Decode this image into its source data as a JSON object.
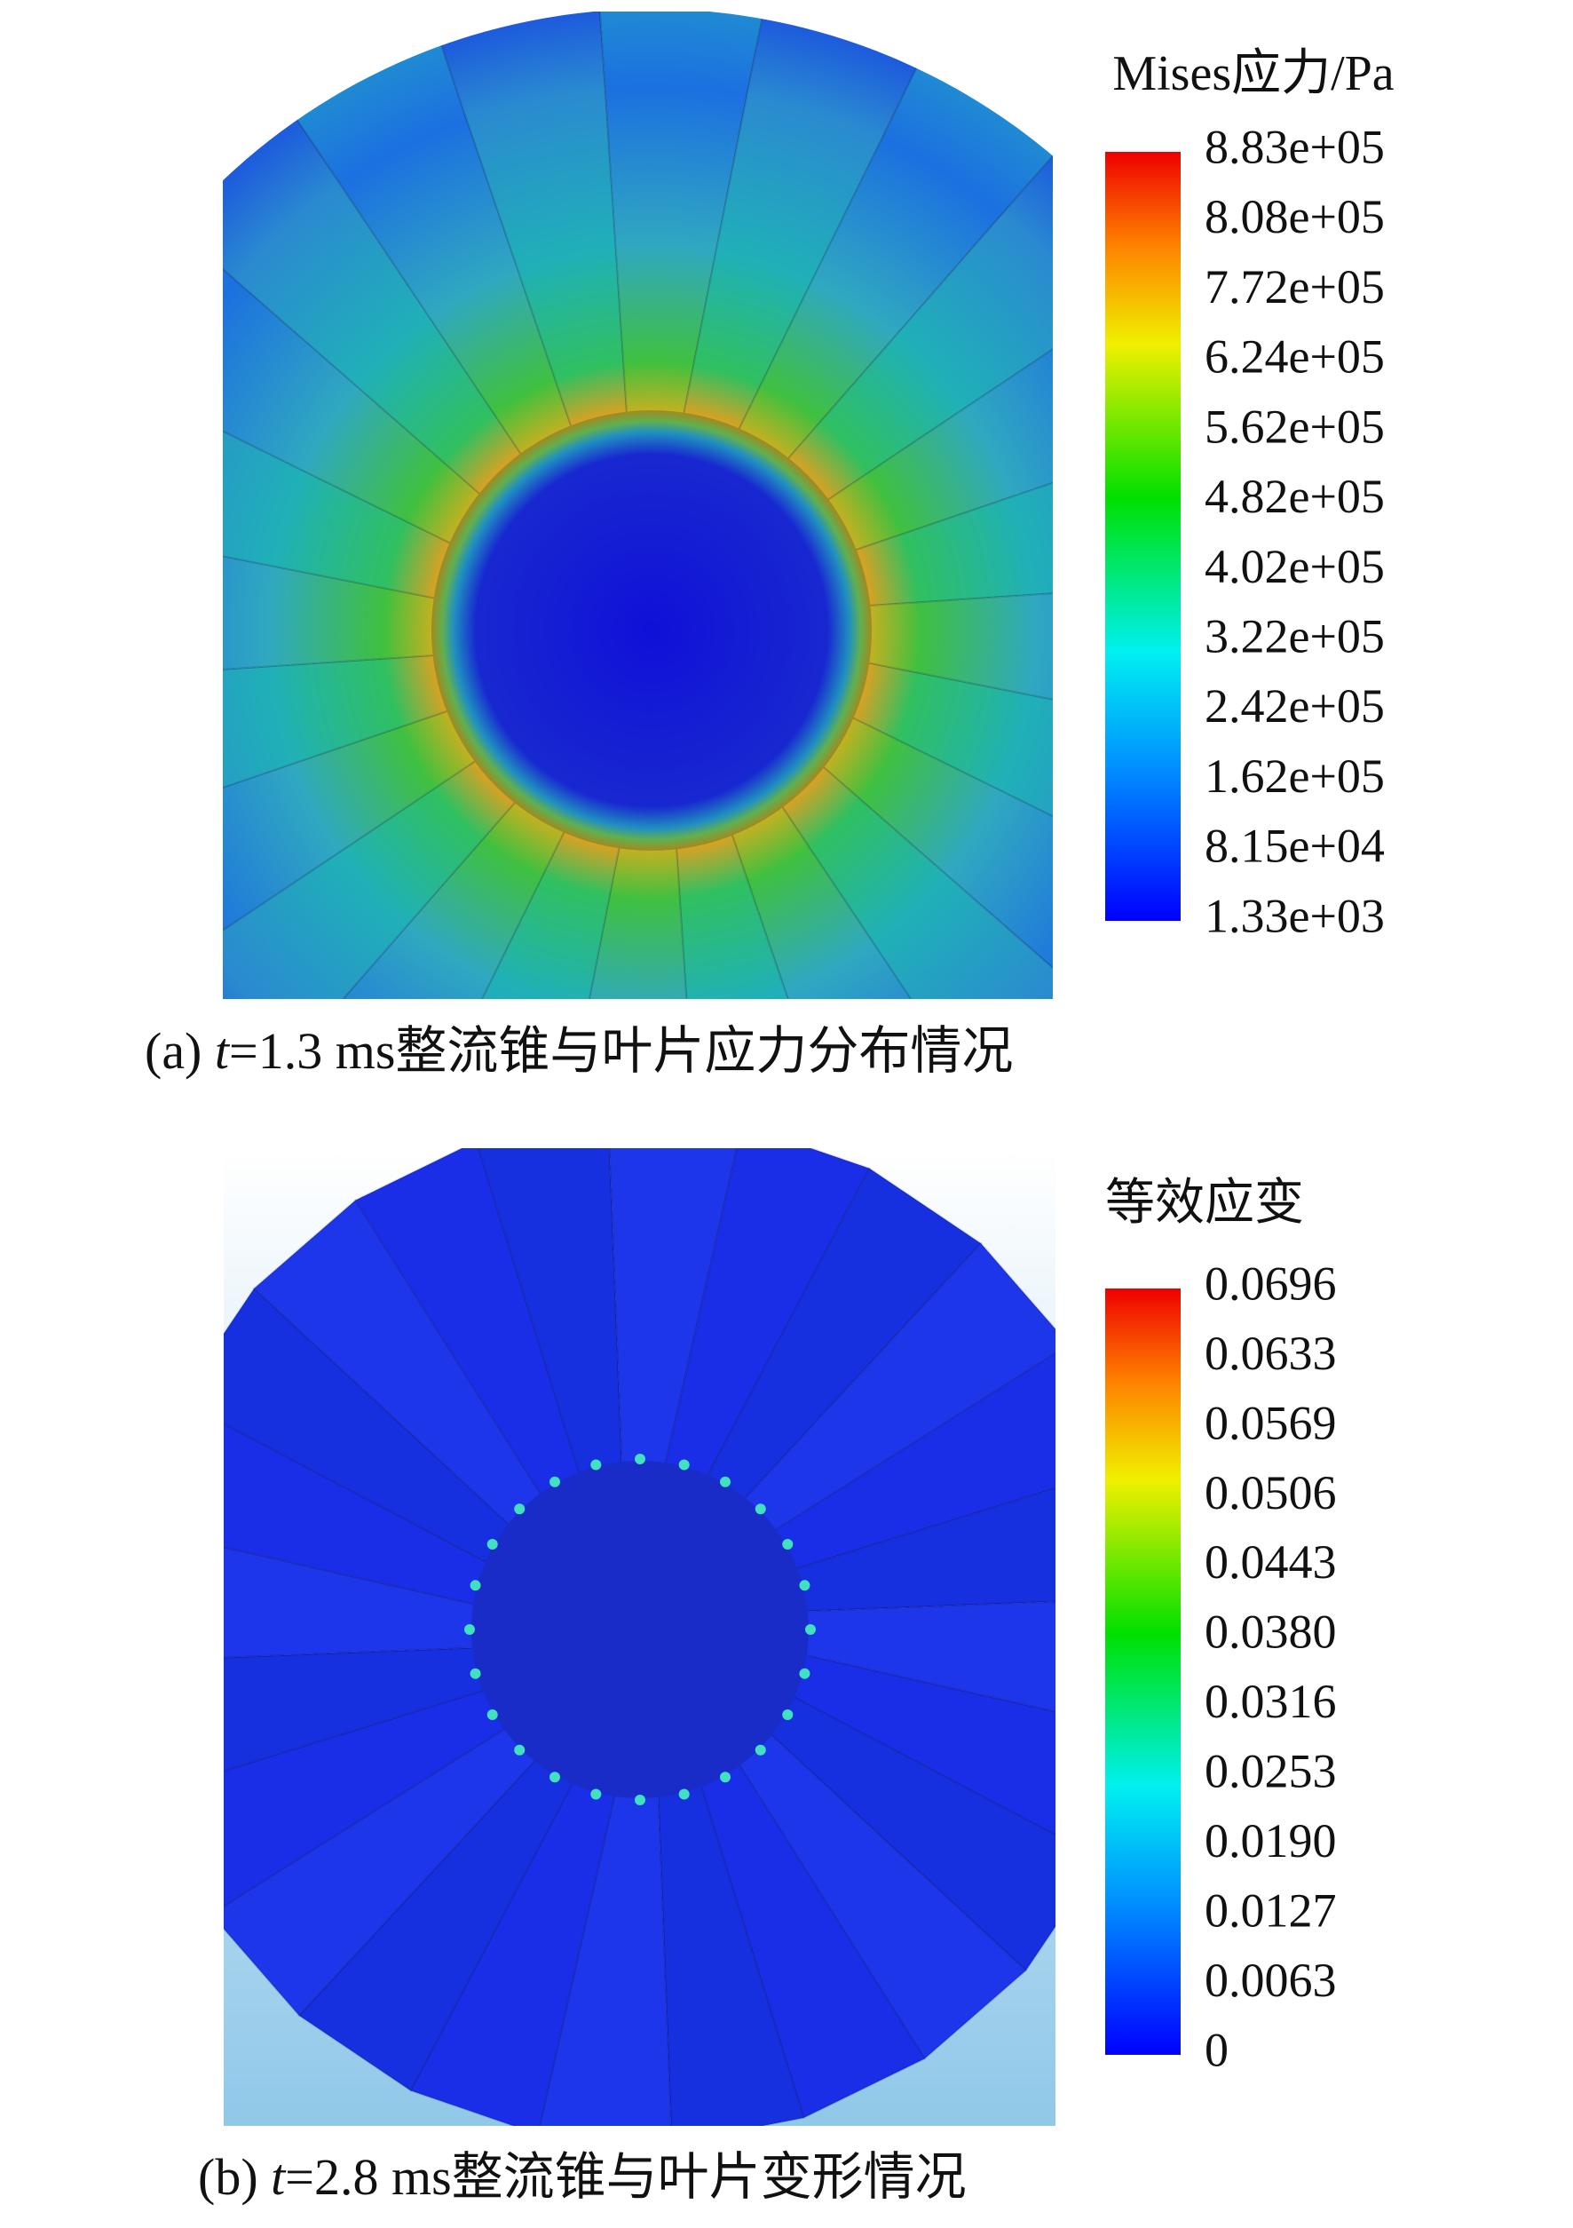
{
  "panels": [
    {
      "colorbar": {
        "title": "Mises应力/Pa",
        "ticks": [
          "8.83e+05",
          "8.08e+05",
          "7.72e+05",
          "6.24e+05",
          "5.62e+05",
          "4.82e+05",
          "4.02e+05",
          "3.22e+05",
          "2.42e+05",
          "1.62e+05",
          "8.15e+04",
          "1.33e+03"
        ]
      },
      "caption": {
        "label": "(a) ",
        "variable": "t",
        "text": "=1.3 ms整流锥与叶片应力分布情况"
      }
    },
    {
      "colorbar": {
        "title": "等效应变",
        "ticks": [
          "0.0696",
          "0.0633",
          "0.0569",
          "0.0506",
          "0.0443",
          "0.0380",
          "0.0316",
          "0.0253",
          "0.0190",
          "0.0127",
          "0.0063",
          "0"
        ]
      },
      "caption": {
        "label": "(b) ",
        "variable": "t",
        "text": "=2.8 ms整流锥与叶片变形情况"
      }
    }
  ]
}
